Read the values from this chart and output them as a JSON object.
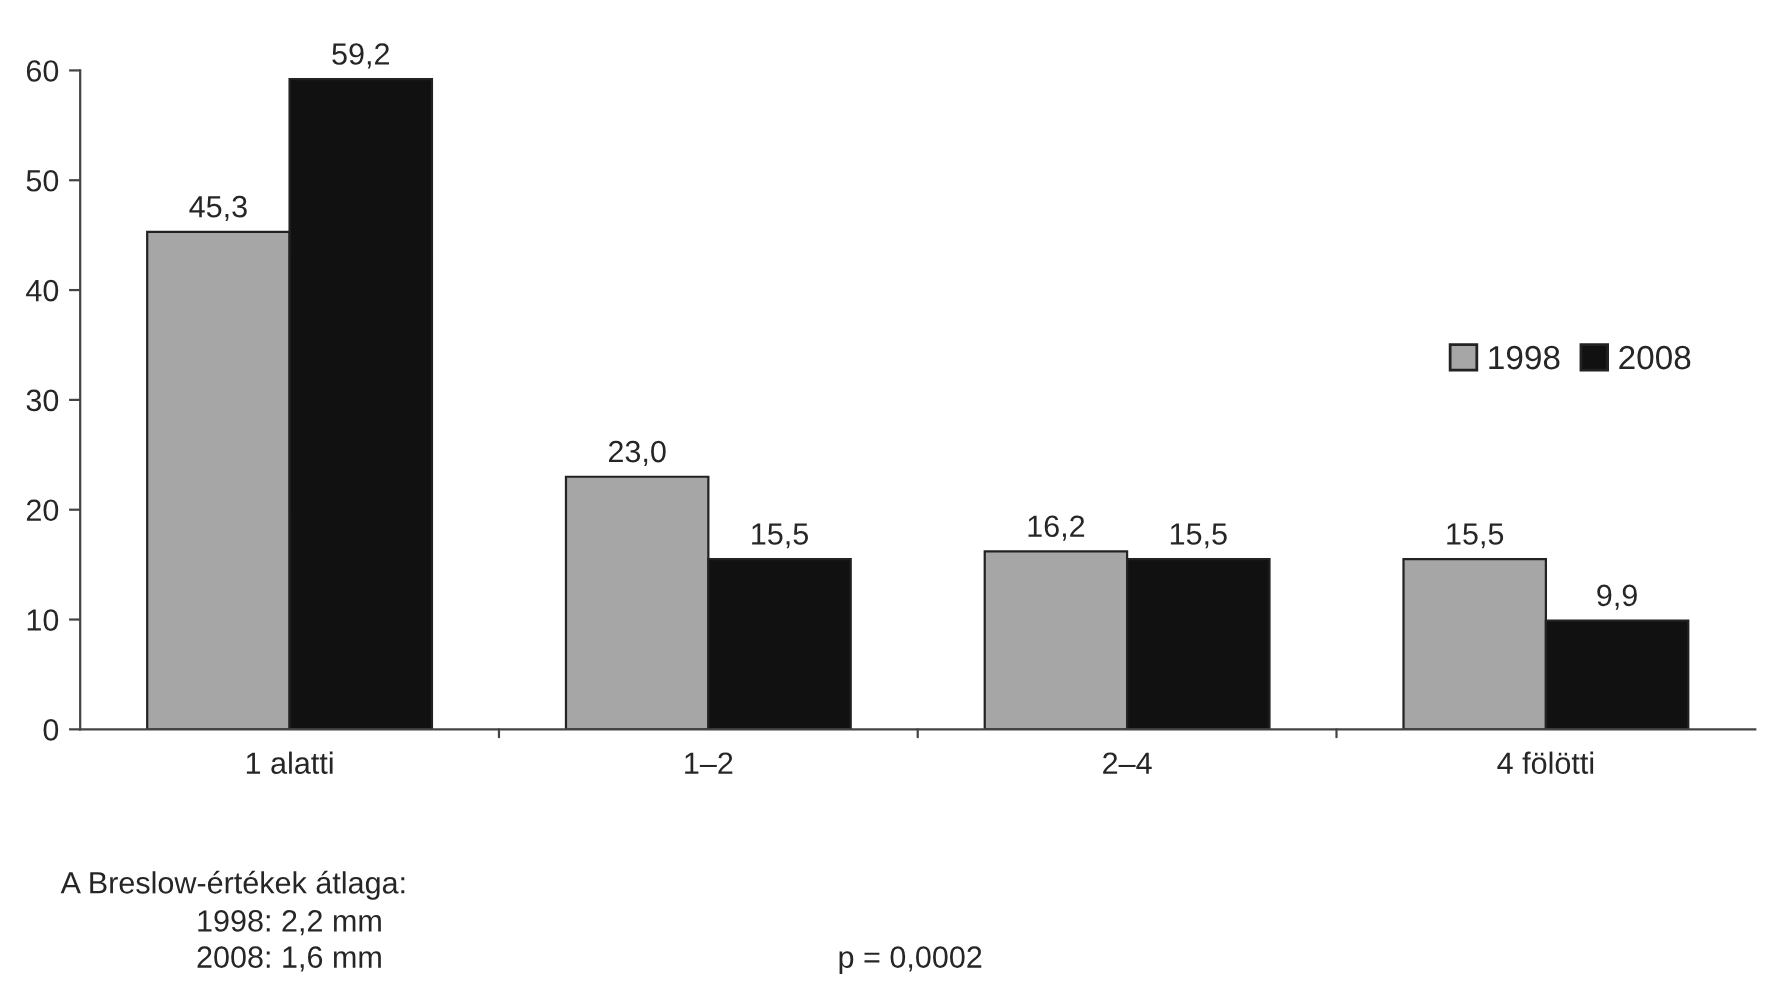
{
  "chart_data": {
    "type": "bar",
    "categories": [
      "1 alatti",
      "1–2",
      "2–4",
      "4 fölötti"
    ],
    "series": [
      {
        "name": "1998",
        "color": "#a6a6a6",
        "values": [
          45.3,
          23.0,
          16.2,
          15.5
        ],
        "value_labels": [
          "45,3",
          "23,0",
          "16,2",
          "15,5"
        ]
      },
      {
        "name": "2008",
        "color": "#111111",
        "values": [
          59.2,
          15.5,
          15.5,
          9.9
        ],
        "value_labels": [
          "59,2",
          "15,5",
          "15,5",
          "9,9"
        ]
      }
    ],
    "ylim": [
      0,
      60
    ],
    "yticks": [
      0,
      10,
      20,
      30,
      40,
      50,
      60
    ],
    "grid": false,
    "legend": "right",
    "annotations": [
      "A Breslow-értékek átlaga:",
      "1998: 2,2 mm",
      "2008: 1,6 mm",
      "p = 0,0002"
    ]
  }
}
